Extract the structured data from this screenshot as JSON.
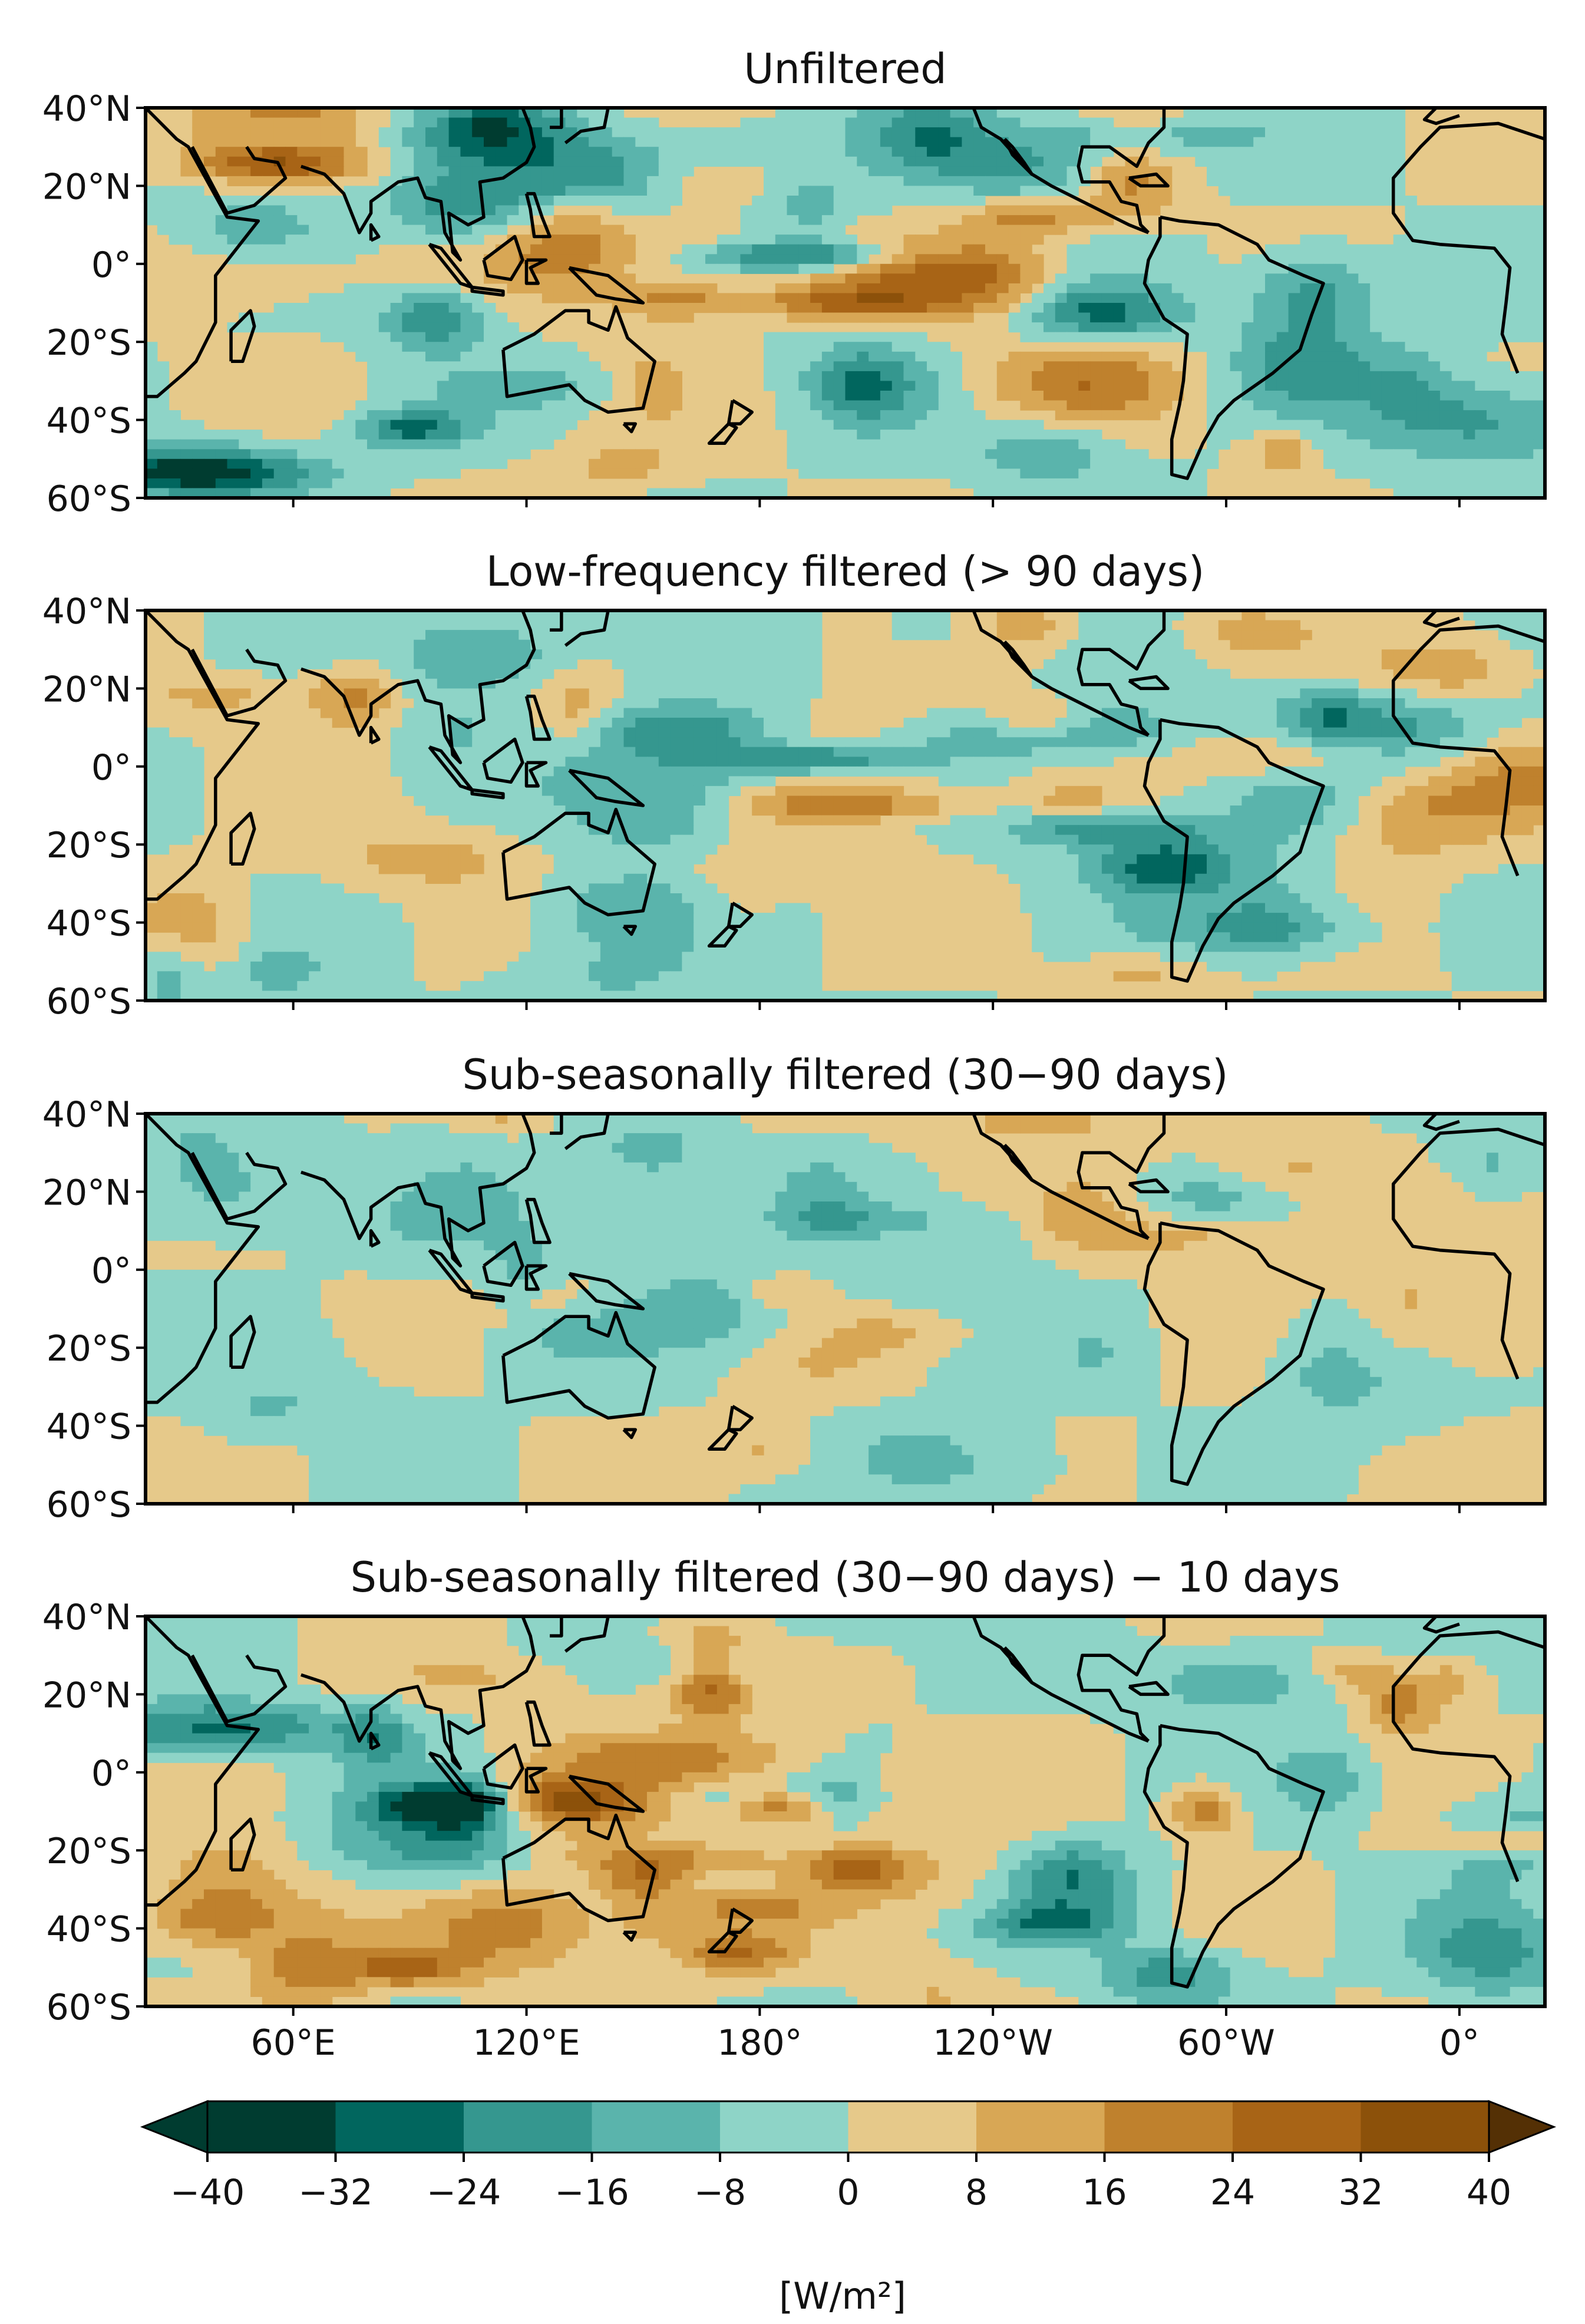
{
  "figure": {
    "panels": [
      {
        "title": "Unfiltered",
        "intensity": 1.0,
        "seed": 11
      },
      {
        "title": "Low-frequency filtered (> 90 days)",
        "intensity": 0.8,
        "seed": 23
      },
      {
        "title": "Sub-seasonally filtered (30−90 days)",
        "intensity": 0.45,
        "seed": 37
      },
      {
        "title": "Sub-seasonally filtered (30−90 days) − 10 days",
        "intensity": 0.95,
        "seed": 53
      }
    ],
    "lat_ticks": [
      "40°N",
      "20°N",
      "0°",
      "20°S",
      "40°S",
      "60°S"
    ],
    "lat_values": [
      40,
      20,
      0,
      -20,
      -40,
      -60
    ],
    "lon_ticks": [
      "60°E",
      "120°E",
      "180°",
      "120°W",
      "60°W",
      "0°"
    ],
    "lon_values": [
      60,
      120,
      180,
      240,
      300,
      360
    ],
    "lon_range": [
      22,
      382
    ],
    "lat_range": [
      -60,
      40
    ],
    "colorbar": {
      "levels": [
        -40,
        -32,
        -24,
        -16,
        -8,
        0,
        8,
        16,
        24,
        32,
        40
      ],
      "tick_labels": [
        "−40",
        "−32",
        "−24",
        "−16",
        "−8",
        "0",
        "8",
        "16",
        "24",
        "32",
        "40"
      ],
      "colors": [
        "#003c30",
        "#01665e",
        "#35978f",
        "#5ab4ac",
        "#8ed4c7",
        "#e6c98a",
        "#d8a755",
        "#bf812d",
        "#a86416",
        "#8c510a",
        "#633a08"
      ],
      "under_color": "#003c30",
      "over_color": "#543005",
      "extend": "both",
      "label": "[W/m²]"
    },
    "colormap_name": "BrBG_r",
    "coastline_color": "#000000"
  }
}
